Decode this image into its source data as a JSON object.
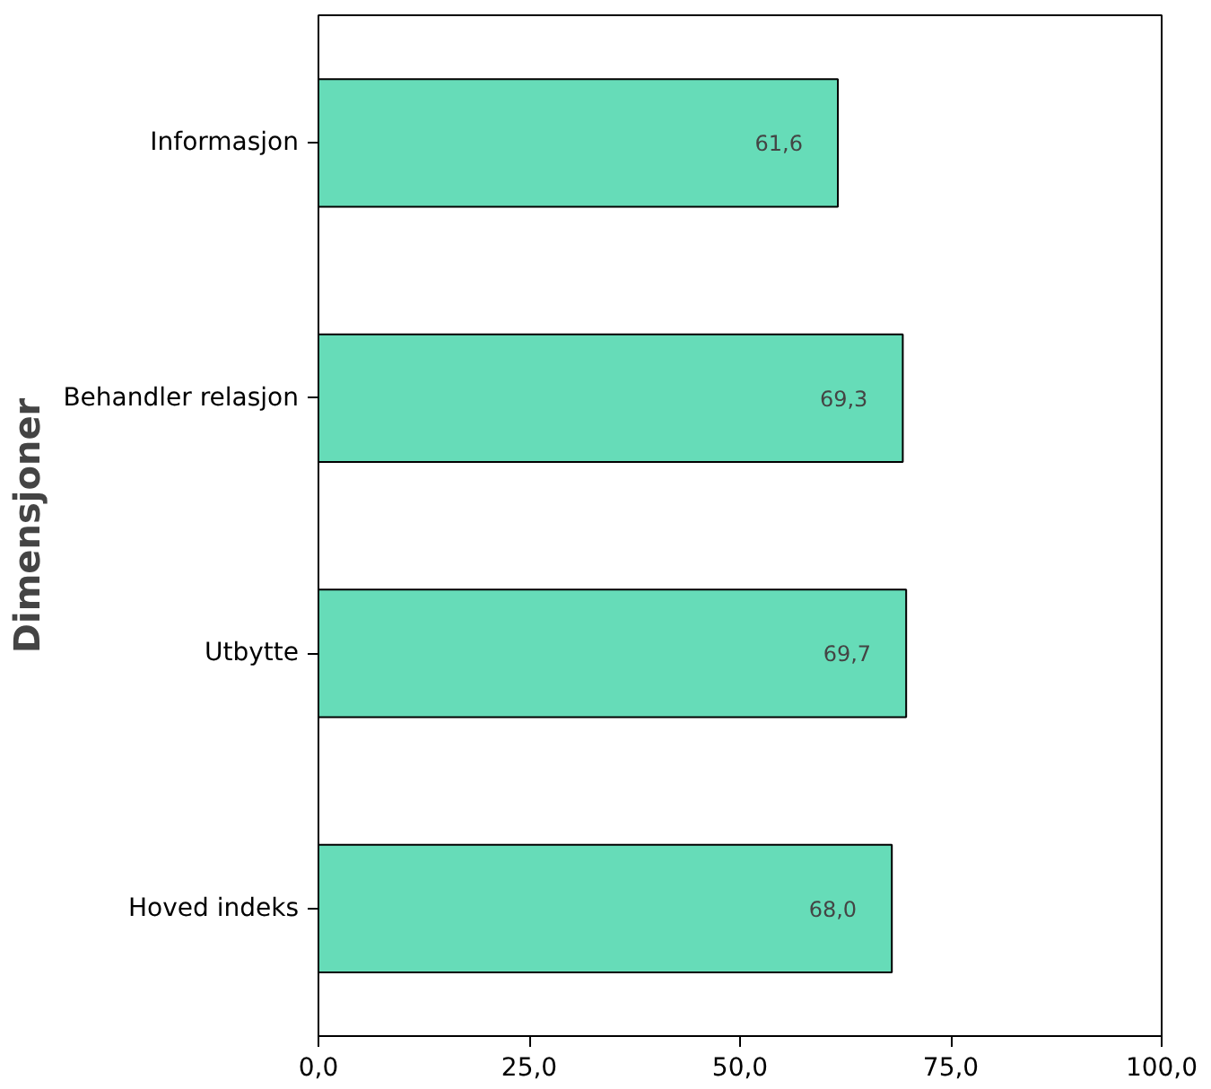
{
  "chart_data": {
    "type": "bar",
    "orientation": "horizontal",
    "ylabel": "Dimensjoner",
    "categories": [
      "Informasjon",
      "Behandler relasjon",
      "Utbytte",
      "Hoved indeks"
    ],
    "values": [
      61.6,
      69.3,
      69.7,
      68.0
    ],
    "value_labels": [
      "61,6",
      "69,3",
      "69,7",
      "68,0"
    ],
    "color": "#66dcb8",
    "xlim": [
      0,
      100
    ],
    "xticks": [
      {
        "value": 0,
        "label": "0,0"
      },
      {
        "value": 25,
        "label": "25,0"
      },
      {
        "value": 50,
        "label": "50,0"
      },
      {
        "value": 75,
        "label": "75,0"
      },
      {
        "value": 100,
        "label": "100,0"
      }
    ],
    "grid": false
  }
}
